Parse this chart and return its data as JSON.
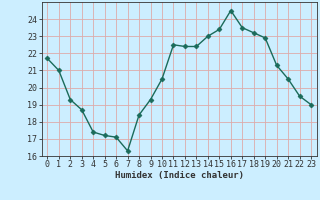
{
  "x": [
    0,
    1,
    2,
    3,
    4,
    5,
    6,
    7,
    8,
    9,
    10,
    11,
    12,
    13,
    14,
    15,
    16,
    17,
    18,
    19,
    20,
    21,
    22,
    23
  ],
  "y": [
    21.7,
    21.0,
    19.3,
    18.7,
    17.4,
    17.2,
    17.1,
    16.3,
    18.4,
    19.3,
    20.5,
    22.5,
    22.4,
    22.4,
    23.0,
    23.4,
    24.5,
    23.5,
    23.2,
    22.9,
    21.3,
    20.5,
    19.5,
    19.0
  ],
  "line_color": "#1a6b5a",
  "marker": "D",
  "marker_size": 2.5,
  "bg_color": "#cceeff",
  "grid_color": "#ddaaaa",
  "axes_color": "#333333",
  "xlabel": "Humidex (Indice chaleur)",
  "ylim": [
    16,
    25
  ],
  "xlim": [
    -0.5,
    23.5
  ],
  "yticks": [
    16,
    17,
    18,
    19,
    20,
    21,
    22,
    23,
    24
  ],
  "xticks": [
    0,
    1,
    2,
    3,
    4,
    5,
    6,
    7,
    8,
    9,
    10,
    11,
    12,
    13,
    14,
    15,
    16,
    17,
    18,
    19,
    20,
    21,
    22,
    23
  ],
  "label_fontsize": 6.5,
  "tick_fontsize": 6
}
